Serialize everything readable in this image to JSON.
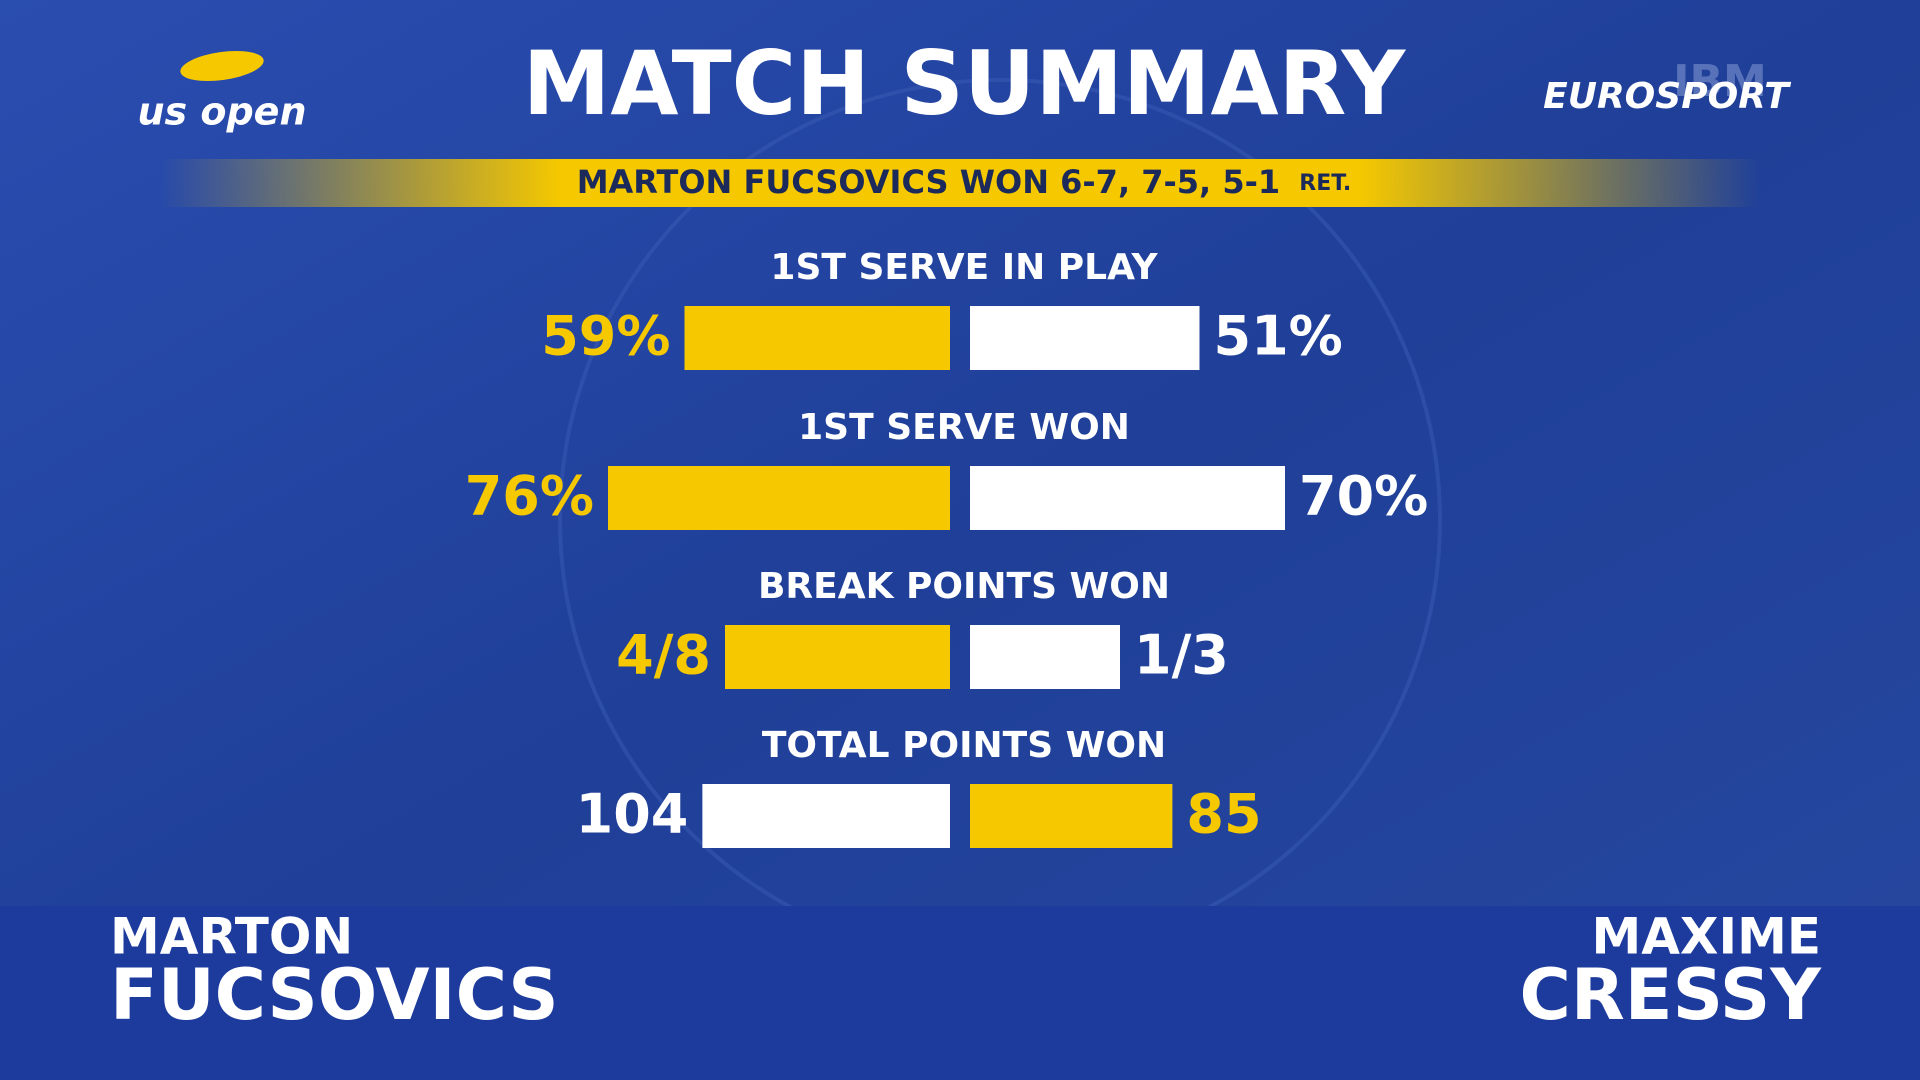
{
  "header": {
    "title": "MATCH SUMMARY",
    "logo_left": "us open",
    "logo_right": "EUROSPORT",
    "sponsor": "IBM"
  },
  "result": {
    "text": "MARTON FUCSOVICS WON 6-7, 7-5, 5-1",
    "suffix": "RET."
  },
  "stats": [
    {
      "label": "1ST SERVE IN PLAY",
      "scale": "percent",
      "left": {
        "value": 59,
        "label": "59%",
        "color": "#f5c800"
      },
      "right": {
        "value": 51,
        "label": "51%",
        "color": "#ffffff"
      }
    },
    {
      "label": "1ST SERVE WON",
      "scale": "percent",
      "left": {
        "value": 76,
        "label": "76%",
        "color": "#f5c800"
      },
      "right": {
        "value": 70,
        "label": "70%",
        "color": "#ffffff"
      }
    },
    {
      "label": "BREAK POINTS WON",
      "scale": "ratio",
      "left": {
        "won": 4,
        "of": 8,
        "label": "4/8",
        "color": "#f5c800"
      },
      "right": {
        "won": 1,
        "of": 3,
        "label": "1/3",
        "color": "#ffffff"
      }
    },
    {
      "label": "TOTAL POINTS WON",
      "scale": "share",
      "left": {
        "value": 104,
        "label": "104",
        "color": "#ffffff"
      },
      "right": {
        "value": 85,
        "label": "85",
        "color": "#f5c800"
      }
    }
  ],
  "players": {
    "left": {
      "first": "MARTON",
      "last": "FUCSOVICS"
    },
    "right": {
      "first": "MAXIME",
      "last": "CRESSY"
    }
  }
}
